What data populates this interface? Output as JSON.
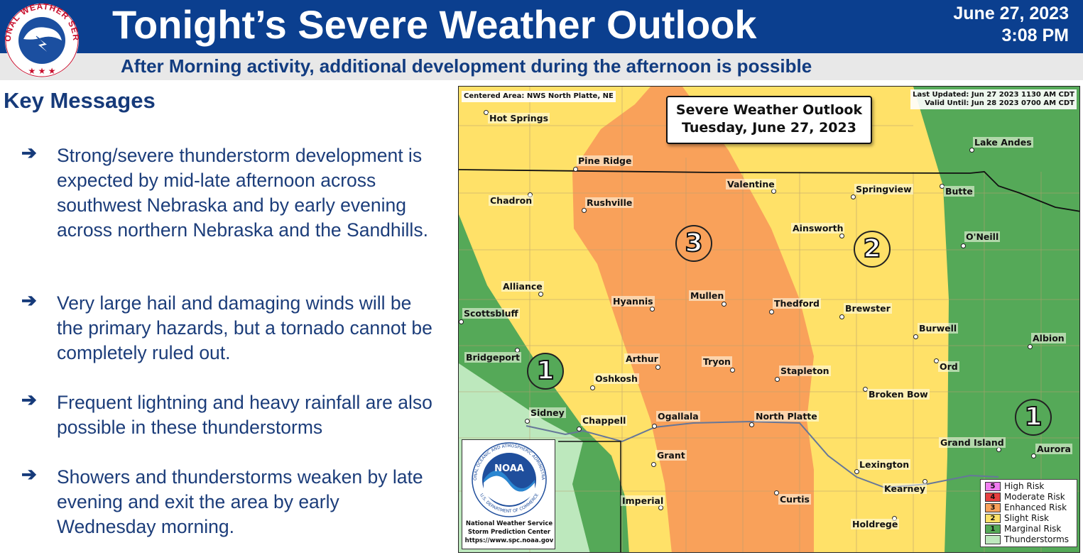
{
  "header": {
    "title": "Tonight’s Severe Weather Outlook",
    "date": "June 27, 2023",
    "time": "3:08 PM",
    "subtitle": "After Morning activity, additional development during the afternoon is possible",
    "logo_text": "NATIONAL WEATHER SERVICE",
    "colors": {
      "header_bg": "#0b3f8f",
      "subtitle_bg": "#e8e8e8",
      "subtitle_text": "#123c80"
    }
  },
  "key_messages": {
    "title": "Key Messages",
    "items": [
      "Strong/severe thunderstorm development is expected by mid-late afternoon across southwest Nebraska and by early evening across northern Nebraska and the Sandhills.",
      "Very large hail and damaging winds will be the primary hazards, but a tornado cannot be completely ruled out.",
      "Frequent lightning and heavy rainfall are also possible in these thunderstorms",
      "Showers and thunderstorms weaken by late evening and exit the area by early Wednesday morning."
    ],
    "bullet_icon": "arrow-right-icon"
  },
  "map": {
    "centered_area": "Centered Area: NWS North Platte, NE",
    "last_updated": "Last Updated: Jun 27 2023 1130 AM CDT",
    "valid_until": "Valid Until: Jun 28 2023 0700 AM CDT",
    "title_line1": "Severe Weather Outlook",
    "title_line2": "Tuesday, June 27, 2023",
    "risk_labels": {
      "west_marginal": "1",
      "enhanced": "3",
      "slight": "2",
      "east_marginal": "1"
    },
    "cities": {
      "hot_springs": "Hot Springs",
      "pine_ridge": "Pine Ridge",
      "lake_andes": "Lake Andes",
      "valentine": "Valentine",
      "springview": "Springview",
      "butte": "Butte",
      "chadron": "Chadron",
      "rushville": "Rushville",
      "ainsworth": "Ainsworth",
      "oneill": "O'Neill",
      "alliance": "Alliance",
      "hyannis": "Hyannis",
      "mullen": "Mullen",
      "thedford": "Thedford",
      "brewster": "Brewster",
      "scottsbluff": "Scottsbluff",
      "burwell": "Burwell",
      "albion": "Albion",
      "bridgeport": "Bridgeport",
      "arthur": "Arthur",
      "tryon": "Tryon",
      "stapleton": "Stapleton",
      "ord": "Ord",
      "oshkosh": "Oshkosh",
      "broken_bow": "Broken Bow",
      "sidney": "Sidney",
      "chappell": "Chappell",
      "ogallala": "Ogallala",
      "north_platte": "North Platte",
      "grand_island": "Grand Island",
      "aurora": "Aurora",
      "grant": "Grant",
      "lexington": "Lexington",
      "kearney": "Kearney",
      "imperial": "Imperial",
      "curtis": "Curtis",
      "holdrege": "Holdrege"
    },
    "noaa": {
      "logo_text": "NOAA",
      "ring_text": "NATIONAL OCEANIC AND ATMOSPHERIC ADMINISTRATION",
      "ring_text_bottom": "U.S. DEPARTMENT OF COMMERCE",
      "line1": "National Weather Service",
      "line2": "Storm Prediction Center",
      "url": "https://www.spc.noaa.gov"
    },
    "legend": [
      {
        "num": "5",
        "label": "High Risk",
        "color": "#f27df2"
      },
      {
        "num": "4",
        "label": "Moderate Risk",
        "color": "#e64040"
      },
      {
        "num": "3",
        "label": "Enhanced Risk",
        "color": "#f9a15a"
      },
      {
        "num": "2",
        "label": "Slight Risk",
        "color": "#ffe168"
      },
      {
        "num": "1",
        "label": "Marginal Risk",
        "color": "#55a958"
      },
      {
        "num": "",
        "label": "Thunderstorms",
        "color": "#bde8bd"
      }
    ],
    "colors": {
      "enhanced": "#f9a15a",
      "slight": "#ffe168",
      "marginal": "#55a958",
      "thunderstorms": "#bde8bd"
    }
  }
}
